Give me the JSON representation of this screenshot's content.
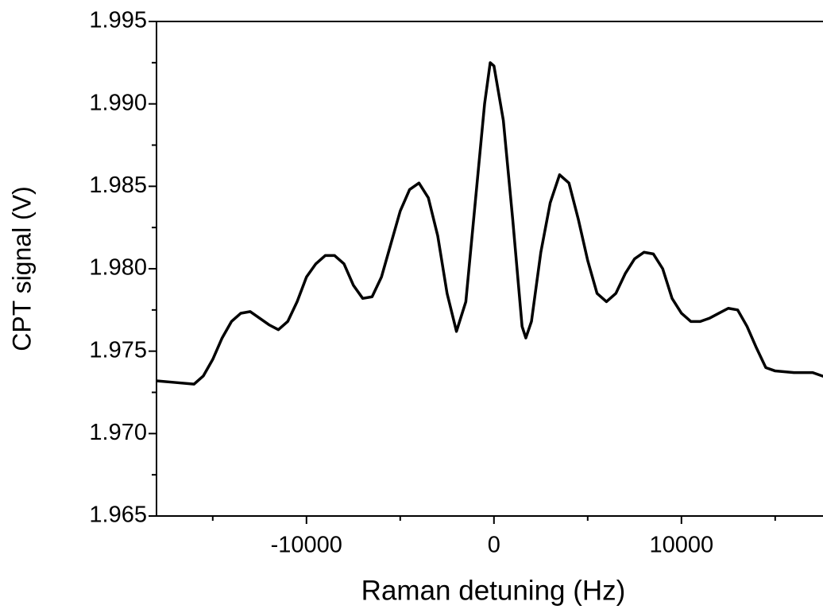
{
  "chart_data": {
    "type": "line",
    "x_label": "Raman detuning (Hz)",
    "y_label": "CPT signal (V)",
    "xlim": [
      -18000,
      18000
    ],
    "ylim": [
      1.965,
      1.995
    ],
    "xticks": [
      -10000,
      0,
      10000
    ],
    "yticks": [
      {
        "value": 1.965,
        "label": "1.965"
      },
      {
        "value": 1.97,
        "label": "1.970"
      },
      1.975,
      {
        "value": 1.98,
        "label": "1.980"
      },
      1.985,
      {
        "value": 1.99,
        "label": "1.990"
      },
      1.995
    ],
    "series": [
      {
        "color": "#000000",
        "x": [
          -18000,
          -17000,
          -16000,
          -15500,
          -15000,
          -14500,
          -14000,
          -13500,
          -13000,
          -12500,
          -12000,
          -11500,
          -11000,
          -10500,
          -10000,
          -9500,
          -9000,
          -8500,
          -8000,
          -7500,
          -7000,
          -6500,
          -6000,
          -5500,
          -5000,
          -4500,
          -4000,
          -3500,
          -3000,
          -2500,
          -2000,
          -1500,
          -1000,
          -500,
          -200,
          0,
          500,
          1000,
          1500,
          1700,
          2000,
          2500,
          3000,
          3500,
          4000,
          4500,
          5000,
          5500,
          6000,
          6500,
          7000,
          7500,
          8000,
          8500,
          9000,
          9500,
          10000,
          10500,
          11000,
          11500,
          12000,
          12500,
          13000,
          13500,
          14000,
          14500,
          15000,
          16000,
          17000,
          18000
        ],
        "values": [
          1.9732,
          1.9731,
          1.973,
          1.9735,
          1.9745,
          1.9758,
          1.9768,
          1.9773,
          1.9774,
          1.977,
          1.9766,
          1.9763,
          1.9768,
          1.978,
          1.9795,
          1.9803,
          1.9808,
          1.9808,
          1.9803,
          1.979,
          1.9782,
          1.9783,
          1.9795,
          1.9815,
          1.9835,
          1.9848,
          1.9852,
          1.9843,
          1.982,
          1.9785,
          1.9762,
          1.978,
          1.984,
          1.99,
          1.9925,
          1.9923,
          1.989,
          1.983,
          1.9765,
          1.9758,
          1.9768,
          1.981,
          1.984,
          1.9857,
          1.9852,
          1.983,
          1.9805,
          1.9785,
          1.978,
          1.9785,
          1.9797,
          1.9806,
          1.981,
          1.9809,
          1.98,
          1.9782,
          1.9773,
          1.9768,
          1.9768,
          1.977,
          1.9773,
          1.9776,
          1.9775,
          1.9765,
          1.9752,
          1.974,
          1.9738,
          1.9737,
          1.9737,
          1.9733
        ]
      }
    ]
  }
}
